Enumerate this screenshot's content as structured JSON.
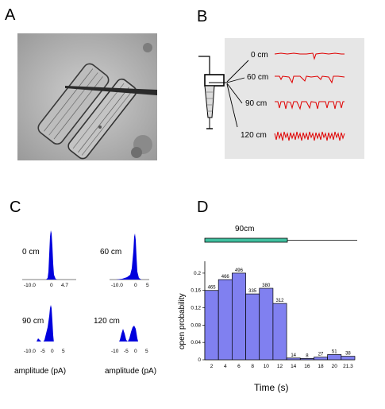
{
  "panels": {
    "a": {
      "letter": "A"
    },
    "b": {
      "letter": "B",
      "trace_labels": [
        "0 cm",
        "60 cm",
        "90 cm",
        "120 cm"
      ]
    },
    "c": {
      "letter": "C",
      "histograms": [
        {
          "label": "0 cm",
          "ticks": [
            "-10.0",
            "0",
            "4.7"
          ]
        },
        {
          "label": "60 cm",
          "ticks": [
            "-10.0",
            "0",
            "5"
          ]
        },
        {
          "label": "90 cm",
          "ticks": [
            "-10.0",
            "-5",
            "0",
            "5"
          ]
        },
        {
          "label": "120 cm",
          "ticks": [
            "-10",
            "-5",
            "0",
            "5"
          ]
        }
      ],
      "xlabel_left": "amplitude (pA)",
      "xlabel_right": "amplitude (pA)"
    },
    "d": {
      "letter": "D",
      "stimulus_label": "90cm"
    }
  },
  "chart_data": {
    "type": "bar",
    "categories": [
      "2",
      "4",
      "6",
      "8",
      "10",
      "12",
      "14",
      "16",
      "18",
      "20",
      "21.3"
    ],
    "values": [
      0.16,
      0.185,
      0.2,
      0.152,
      0.165,
      0.13,
      0.004,
      0.003,
      0.006,
      0.012,
      0.008
    ],
    "bar_labels": [
      "465",
      "466",
      "496",
      "335",
      "380",
      "312",
      "14",
      "8",
      "27",
      "51",
      "38"
    ],
    "yticks": [
      "0",
      "0.04",
      "0.08",
      "0.12",
      "0.16",
      "0.2"
    ],
    "ylim": [
      0,
      0.22
    ],
    "xlabel": "Time (s)",
    "ylabel": "open probability",
    "bar_color": "#8080f0"
  }
}
